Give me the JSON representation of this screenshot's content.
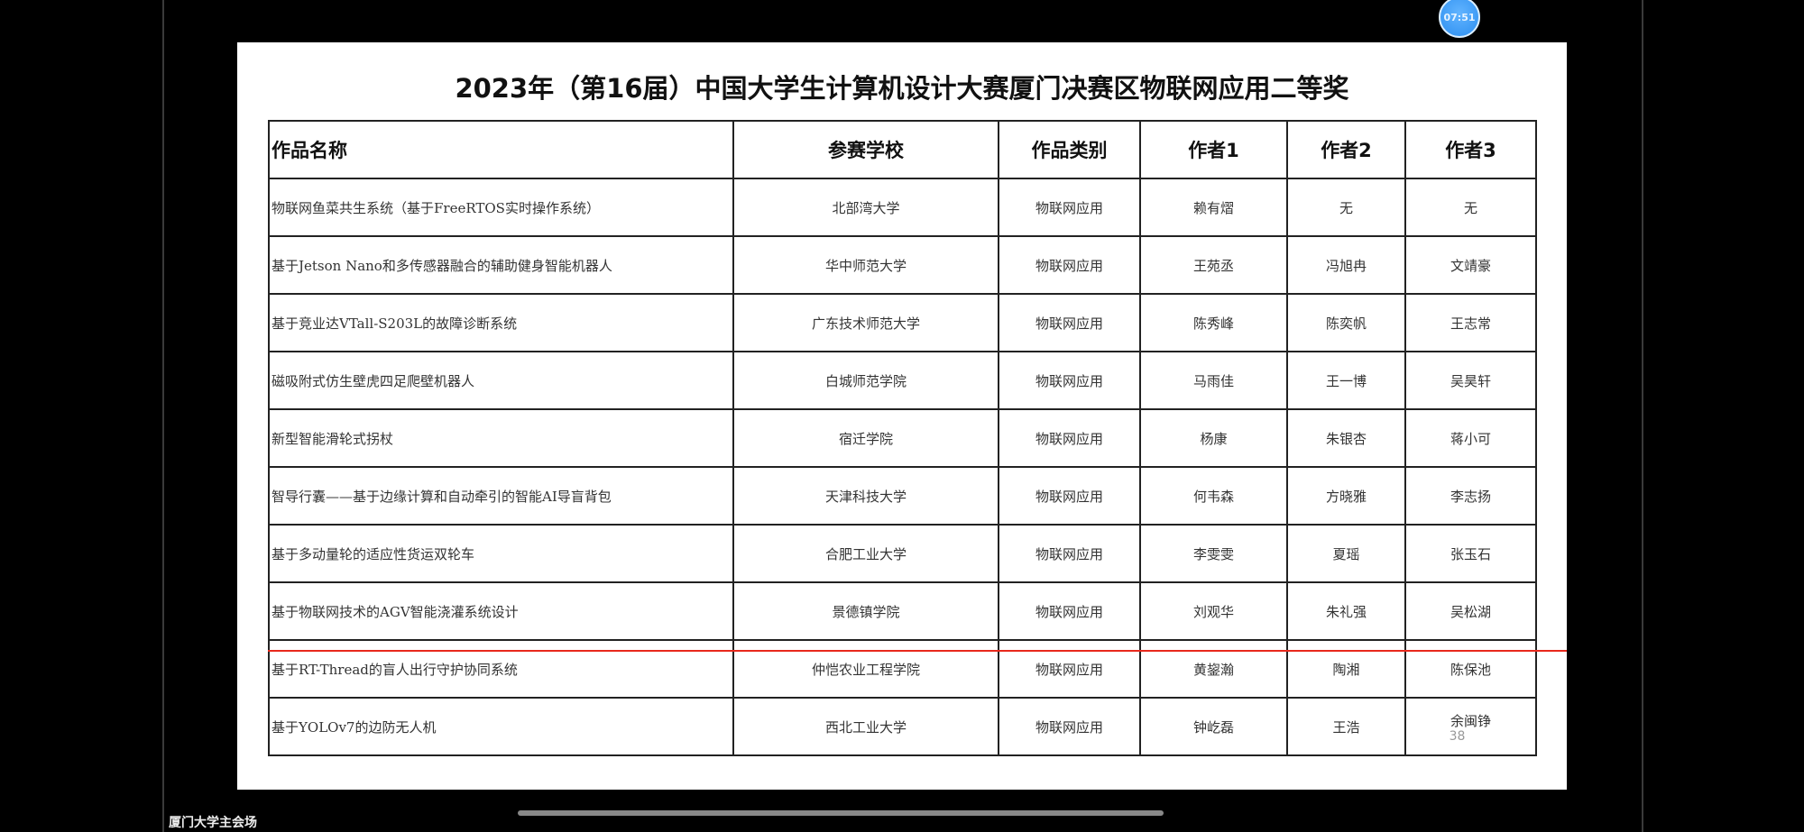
{
  "clock": {
    "time": "07:51"
  },
  "slide": {
    "title": "2023年（第16届）中国大学生计算机设计大赛厦门决赛区物联网应用二等奖",
    "columns": [
      "作品名称",
      "参赛学校",
      "作品类别",
      "作者1",
      "作者2",
      "作者3"
    ],
    "rows": [
      [
        "物联网鱼菜共生系统（基于FreeRTOS实时操作系统）",
        "北部湾大学",
        "物联网应用",
        "赖有熠",
        "无",
        "无"
      ],
      [
        "基于Jetson Nano和多传感器融合的辅助健身智能机器人",
        "华中师范大学",
        "物联网应用",
        "王苑丞",
        "冯旭冉",
        "文靖豪"
      ],
      [
        "基于竞业达VTall-S203L的故障诊断系统",
        "广东技术师范大学",
        "物联网应用",
        "陈秀峰",
        "陈奕帆",
        "王志常"
      ],
      [
        "磁吸附式仿生壁虎四足爬壁机器人",
        "白城师范学院",
        "物联网应用",
        "马雨佳",
        "王一博",
        "吴昊轩"
      ],
      [
        "新型智能滑轮式拐杖",
        "宿迁学院",
        "物联网应用",
        "杨康",
        "朱银杏",
        "蒋小可"
      ],
      [
        "智导行囊——基于边缘计算和自动牵引的智能AI导盲背包",
        "天津科技大学",
        "物联网应用",
        "何韦森",
        "方晓雅",
        "李志扬"
      ],
      [
        "基于多动量轮的适应性货运双轮车",
        "合肥工业大学",
        "物联网应用",
        "李雯雯",
        "夏瑶",
        "张玉石"
      ],
      [
        "基于物联网技术的AGV智能浇灌系统设计",
        "景德镇学院",
        "物联网应用",
        "刘观华",
        "朱礼强",
        "吴松湖"
      ],
      [
        "基于RT-Thread的盲人出行守护协同系统",
        "仲恺农业工程学院",
        "物联网应用",
        "黄鋆瀚",
        "陶湘",
        "陈保池"
      ],
      [
        "基于YOLOv7的边防无人机",
        "西北工业大学",
        "物联网应用",
        "钟屹磊",
        "王浩",
        "余闽铮"
      ]
    ],
    "page_number": "38"
  },
  "footer": {
    "venue": "厦门大学主会场"
  },
  "colors": {
    "annotation_line": "#e8291c",
    "clock": "#2b8ef0"
  }
}
